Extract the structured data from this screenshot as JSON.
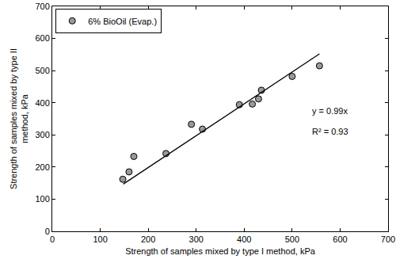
{
  "chart_data": {
    "type": "scatter",
    "x_label": "Strength of samples mixed by type I method, kPa",
    "y_label": [
      "Strength of samples mixed by type II",
      "method, kPa"
    ],
    "series": [
      {
        "name": "6% BioOil (Evap.)",
        "type": "scatter",
        "color": "#999999",
        "marker": "circle",
        "x": [
          147,
          160,
          170,
          237,
          290,
          313,
          390,
          417,
          430,
          436,
          500,
          557
        ],
        "y": [
          162,
          185,
          233,
          242,
          333,
          318,
          394,
          396,
          412,
          439,
          482,
          515
        ]
      },
      {
        "type": "line",
        "color": "#000000",
        "line_style": "solid",
        "x": [
          148,
          557
        ],
        "y": [
          147,
          552
        ]
      }
    ],
    "annotations": [
      "y = 0.99x",
      "R² = 0.93"
    ],
    "xlim": [
      0,
      700
    ],
    "xticks": [
      0,
      100,
      200,
      300,
      400,
      500,
      600,
      700
    ],
    "ylim": [
      0,
      700
    ],
    "yticks": [
      0,
      100,
      200,
      300,
      400,
      500,
      600,
      700
    ],
    "grid": false,
    "legend": "upper left"
  }
}
